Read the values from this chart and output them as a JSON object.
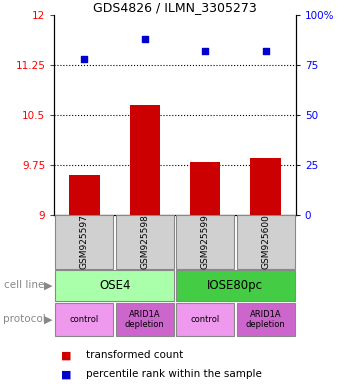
{
  "title": "GDS4826 / ILMN_3305273",
  "samples": [
    "GSM925597",
    "GSM925598",
    "GSM925599",
    "GSM925600"
  ],
  "bar_values": [
    9.6,
    10.65,
    9.8,
    9.85
  ],
  "scatter_values": [
    78,
    88,
    82,
    82
  ],
  "bar_bottom": 9.0,
  "ylim_left": [
    9.0,
    12.0
  ],
  "ylim_right": [
    0,
    100
  ],
  "yticks_left": [
    9.0,
    9.75,
    10.5,
    11.25,
    12.0
  ],
  "ytick_labels_left": [
    "9",
    "9.75",
    "10.5",
    "11.25",
    "12"
  ],
  "yticks_right": [
    0,
    25,
    50,
    75,
    100
  ],
  "ytick_labels_right": [
    "0",
    "25",
    "50",
    "75",
    "100%"
  ],
  "bar_color": "#cc0000",
  "scatter_color": "#0000cc",
  "dotted_lines": [
    9.75,
    10.5,
    11.25
  ],
  "cell_lines": [
    {
      "label": "OSE4",
      "cols": [
        0,
        1
      ],
      "color": "#aaffaa"
    },
    {
      "label": "IOSE80pc",
      "cols": [
        2,
        3
      ],
      "color": "#44cc44"
    }
  ],
  "protocol_colors": [
    "#ee99ee",
    "#cc66cc",
    "#ee99ee",
    "#cc66cc"
  ],
  "protocol_labels": [
    "control",
    "ARID1A\ndepletion",
    "control",
    "ARID1A\ndepletion"
  ],
  "legend_bar_label": "transformed count",
  "legend_scatter_label": "percentile rank within the sample",
  "cell_line_label": "cell line",
  "protocol_label": "protocol",
  "sample_box_color": "#d0d0d0",
  "sample_box_edge": "#888888"
}
